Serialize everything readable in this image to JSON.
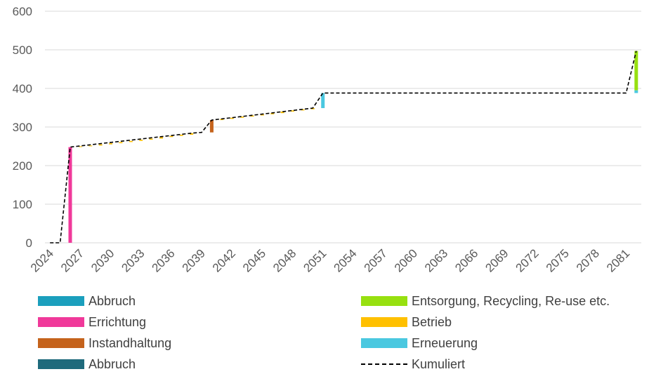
{
  "chart_data": {
    "type": "bar",
    "title": "",
    "xlabel": "",
    "ylabel": "",
    "ylim": [
      0,
      600
    ],
    "y_ticks": [
      "0",
      "100",
      "200",
      "300",
      "400",
      "500",
      "600"
    ],
    "x_tick_labels": [
      "2024",
      "2027",
      "2030",
      "2033",
      "2036",
      "2039",
      "2042",
      "2045",
      "2048",
      "2051",
      "2054",
      "2057",
      "2060",
      "2063",
      "2066",
      "2069",
      "2072",
      "2075",
      "2078",
      "2081"
    ],
    "grid": true,
    "legend_position": "bottom",
    "series": [
      {
        "name": "Abbruch",
        "color": "#1b9fbd",
        "segments": []
      },
      {
        "name": "Errichtung",
        "color": "#f0399a",
        "segments": [
          {
            "year": 2026,
            "from": 0,
            "to": 248
          }
        ]
      },
      {
        "name": "Instandhaltung",
        "color": "#c5631c",
        "segments": [
          {
            "year": 2040,
            "from": 286,
            "to": 318
          }
        ]
      },
      {
        "name": "Abbruch",
        "color": "#1f6a7c",
        "segments": []
      },
      {
        "name": "Entsorgung, Recycling, Re-use etc.",
        "color": "#97e010",
        "segments": [
          {
            "year": 2082,
            "from": 395,
            "to": 497
          }
        ]
      },
      {
        "name": "Betrieb",
        "color": "#ffc000",
        "segments": [
          {
            "year": 2027,
            "from": 248,
            "to": 250
          },
          {
            "year": 2028,
            "from": 250,
            "to": 252
          },
          {
            "year": 2029,
            "from": 252,
            "to": 255
          },
          {
            "year": 2030,
            "from": 255,
            "to": 258
          },
          {
            "year": 2031,
            "from": 258,
            "to": 261
          },
          {
            "year": 2032,
            "from": 261,
            "to": 264
          },
          {
            "year": 2033,
            "from": 264,
            "to": 267
          },
          {
            "year": 2034,
            "from": 267,
            "to": 270
          },
          {
            "year": 2035,
            "from": 270,
            "to": 274
          },
          {
            "year": 2036,
            "from": 274,
            "to": 277
          },
          {
            "year": 2037,
            "from": 277,
            "to": 280
          },
          {
            "year": 2038,
            "from": 280,
            "to": 284
          },
          {
            "year": 2041,
            "from": 318,
            "to": 321
          },
          {
            "year": 2042,
            "from": 321,
            "to": 324
          },
          {
            "year": 2043,
            "from": 324,
            "to": 327
          },
          {
            "year": 2044,
            "from": 327,
            "to": 330
          },
          {
            "year": 2045,
            "from": 330,
            "to": 333
          },
          {
            "year": 2046,
            "from": 333,
            "to": 336
          },
          {
            "year": 2047,
            "from": 336,
            "to": 340
          },
          {
            "year": 2048,
            "from": 340,
            "to": 343
          },
          {
            "year": 2049,
            "from": 343,
            "to": 346
          },
          {
            "year": 2050,
            "from": 346,
            "to": 349
          }
        ]
      },
      {
        "name": "Erneuerung",
        "color": "#4ac8e0",
        "segments": [
          {
            "year": 2051,
            "from": 349,
            "to": 388
          },
          {
            "year": 2082,
            "from": 388,
            "to": 395
          }
        ]
      },
      {
        "name": "Kumuliert",
        "color": "#000000",
        "style": "dashed-line",
        "x": [
          2024,
          2025,
          2026,
          2038,
          2039,
          2040,
          2050,
          2051,
          2052,
          2081,
          2082
        ],
        "y": [
          0,
          0,
          248,
          284,
          286,
          318,
          349,
          388,
          388,
          388,
          497
        ]
      }
    ]
  },
  "legend": {
    "left": [
      {
        "label": "Abbruch",
        "color": "#1b9fbd",
        "kind": "swatch"
      },
      {
        "label": "Errichtung",
        "color": "#f0399a",
        "kind": "swatch"
      },
      {
        "label": "Instandhaltung",
        "color": "#c5631c",
        "kind": "swatch"
      },
      {
        "label": "Abbruch",
        "color": "#1f6a7c",
        "kind": "swatch"
      }
    ],
    "right": [
      {
        "label": "Entsorgung, Recycling, Re-use etc.",
        "color": "#97e010",
        "kind": "swatch"
      },
      {
        "label": "Betrieb",
        "color": "#ffc000",
        "kind": "swatch"
      },
      {
        "label": "Erneuerung",
        "color": "#4ac8e0",
        "kind": "swatch"
      },
      {
        "label": "Kumuliert",
        "color": "#000000",
        "kind": "dash"
      }
    ]
  }
}
